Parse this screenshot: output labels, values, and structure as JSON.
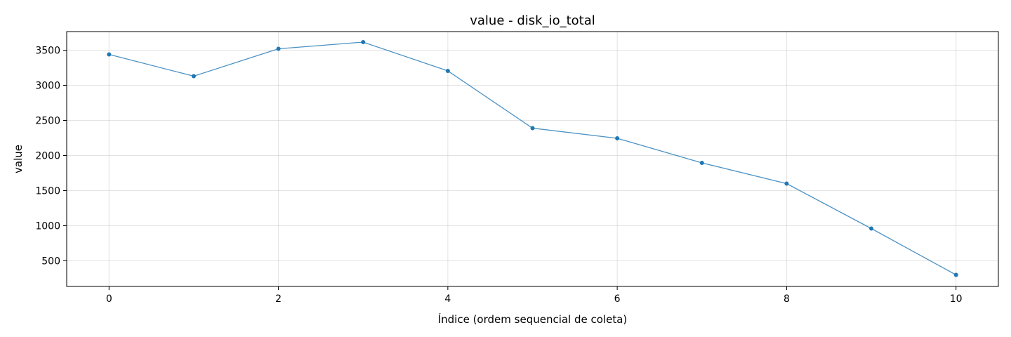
{
  "chart_data": {
    "type": "line",
    "title": "value - disk_io_total",
    "xlabel": "Índice (ordem sequencial de coleta)",
    "ylabel": "value",
    "xlim": [
      -0.5,
      10.5
    ],
    "ylim": [
      135,
      3765
    ],
    "xticks": [
      0,
      2,
      4,
      6,
      8,
      10
    ],
    "yticks": [
      500,
      1000,
      1500,
      2000,
      2500,
      3000,
      3500
    ],
    "grid": true,
    "line_color": "#1f77b4",
    "series": [
      {
        "x": [
          0,
          1,
          2,
          3,
          4,
          5,
          6,
          7,
          8,
          9,
          10
        ],
        "values": [
          3440,
          3130,
          3520,
          3615,
          3205,
          2390,
          2245,
          1895,
          1600,
          960,
          300
        ]
      }
    ]
  }
}
